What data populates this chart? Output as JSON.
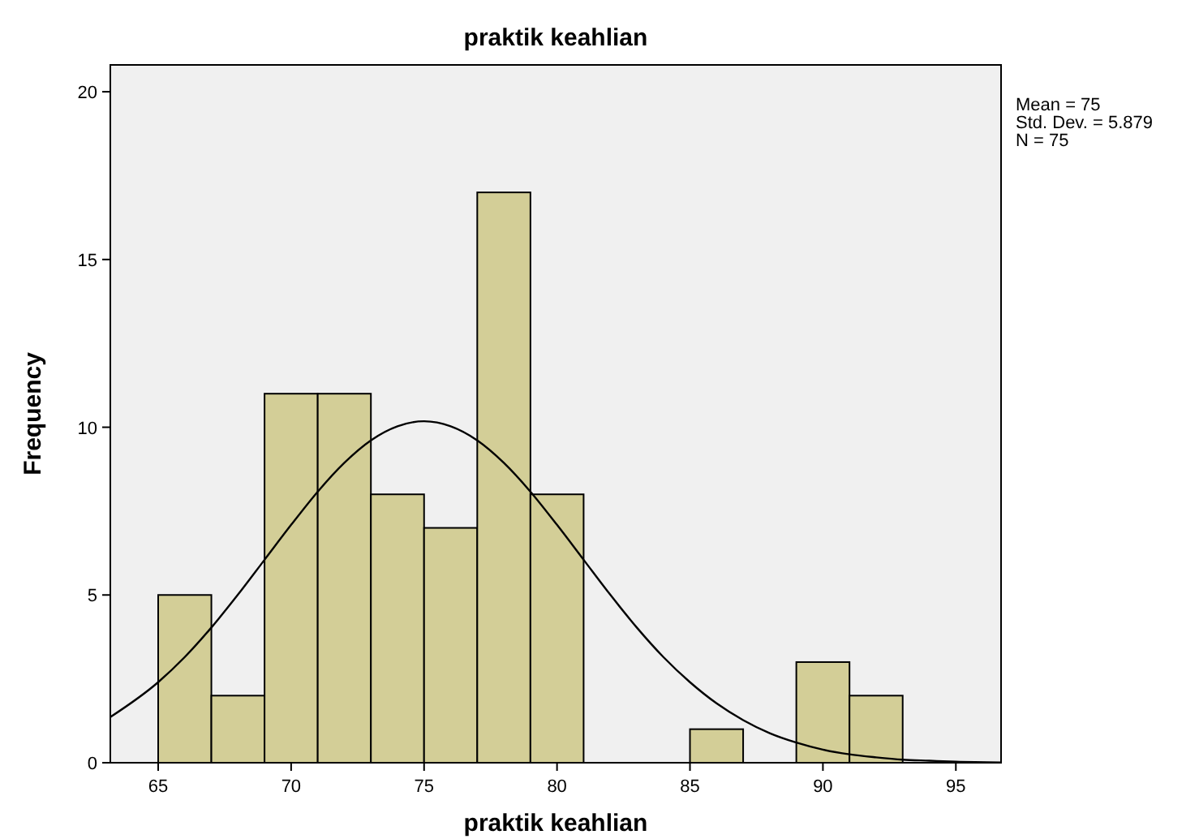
{
  "chart_data": {
    "type": "histogram",
    "title": "praktik keahlian",
    "xlabel": "praktik keahlian",
    "ylabel": "Frequency",
    "bins": [
      65,
      67,
      69,
      71,
      73,
      75,
      77,
      79,
      81,
      83,
      85,
      87,
      89,
      91,
      93
    ],
    "values": [
      5,
      2,
      11,
      11,
      8,
      7,
      17,
      8,
      0,
      0,
      1,
      0,
      3,
      2
    ],
    "color": "#d3ce97",
    "series": [
      {
        "type": "line",
        "color": "#000000",
        "x": [
          63.2,
          65,
          66,
          67,
          68,
          69,
          70,
          71,
          72,
          73,
          74,
          75,
          76,
          77,
          78,
          79,
          80,
          81,
          82,
          83,
          84,
          85,
          86,
          87,
          88,
          89,
          90,
          91,
          92,
          93,
          94,
          95,
          96.7
        ],
        "values": [
          1.36,
          2.4,
          3.15,
          4.03,
          5.01,
          6.05,
          7.09,
          8.08,
          8.94,
          9.61,
          10.03,
          10.18,
          10.03,
          9.61,
          8.94,
          8.08,
          7.09,
          6.05,
          5.01,
          4.03,
          3.15,
          2.4,
          1.77,
          1.27,
          0.88,
          0.6,
          0.39,
          0.25,
          0.16,
          0.09,
          0.06,
          0.03,
          0.01
        ]
      }
    ],
    "xlim": [
      63.2,
      96.7
    ],
    "ylim": [
      0,
      20.8
    ],
    "xticks": [
      65,
      70,
      75,
      80,
      85,
      90,
      95
    ],
    "yticks": [
      0,
      5,
      10,
      15,
      20
    ],
    "annotations": [
      "Mean = 75",
      "Std. Dev. = 5.879",
      "N = 75"
    ]
  }
}
